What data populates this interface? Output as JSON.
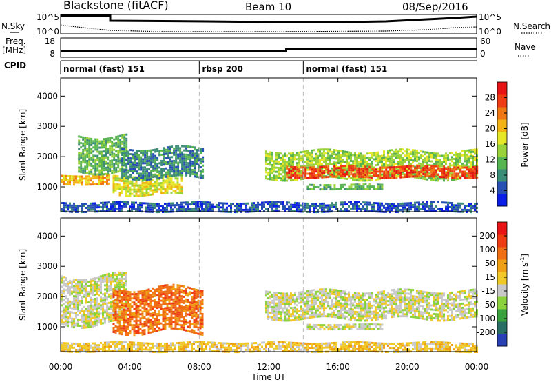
{
  "header": {
    "title": "Blackstone (fitACF)",
    "beam": "Beam 10",
    "date": "08/Sep/2016"
  },
  "side_labels": {
    "nsky": "N.Sky",
    "nsearch": "N.Search",
    "freq": "Freq.",
    "freq_unit": "[MHz]",
    "nave": "Nave",
    "cpid": "CPID"
  },
  "top_panels": {
    "noise_ticks_left": [
      "10^5",
      "10^0"
    ],
    "noise_ticks_right": [
      "10^5",
      "10^0"
    ],
    "freq_ticks_left": [
      "18",
      "8"
    ],
    "nave_ticks_right": [
      "60",
      "0"
    ]
  },
  "cpid_segments": [
    {
      "label": "normal (fast) 151",
      "start_hour": 0
    },
    {
      "label": "rbsp 200",
      "start_hour": 8
    },
    {
      "label": "normal (fast) 151",
      "start_hour": 14
    }
  ],
  "chart_data": [
    {
      "type": "heatmap",
      "name": "power",
      "ylabel": "Slant Range [km]",
      "y_ticks": [
        "4000",
        "3000",
        "2000",
        "1000"
      ],
      "y_tick_values": [
        4000,
        3000,
        2000,
        1000
      ],
      "ylim": [
        180,
        4600
      ],
      "xlim": [
        0,
        24
      ],
      "colorbar_label": "Power [dB]",
      "colorbar_ticks": [
        "28",
        "24",
        "20",
        "16",
        "12",
        "8",
        "4"
      ],
      "colorbar_colors": [
        "#0a1ee6",
        "#2850b4",
        "#3c8c78",
        "#58b450",
        "#9ad23c",
        "#e6e628",
        "#f0b414",
        "#f07814",
        "#ee3c14",
        "#e61414"
      ],
      "bands": [
        {
          "x0": 0.0,
          "x1": 2.8,
          "y0": 1100,
          "y1": 1400,
          "level": 6
        },
        {
          "x0": 1.0,
          "x1": 3.8,
          "y0": 1500,
          "y1": 2700,
          "level": 3
        },
        {
          "x0": 3.0,
          "x1": 7.0,
          "y0": 750,
          "y1": 1400,
          "level": 5
        },
        {
          "x0": 3.5,
          "x1": 8.2,
          "y0": 1300,
          "y1": 2300,
          "level": 2
        },
        {
          "x0": 11.8,
          "x1": 24.0,
          "y0": 1300,
          "y1": 2200,
          "level": 4
        },
        {
          "x0": 13.0,
          "x1": 24.0,
          "y0": 1350,
          "y1": 1700,
          "level": 8
        },
        {
          "x0": 14.2,
          "x1": 18.5,
          "y0": 950,
          "y1": 1100,
          "level": 3
        },
        {
          "x0": 0.0,
          "x1": 24.0,
          "y0": 180,
          "y1": 500,
          "level": 1
        }
      ]
    },
    {
      "type": "heatmap",
      "name": "velocity",
      "ylabel": "Slant Range [km]",
      "y_ticks": [
        "4000",
        "3000",
        "2000",
        "1000"
      ],
      "y_tick_values": [
        4000,
        3000,
        2000,
        1000
      ],
      "ylim": [
        180,
        4600
      ],
      "xlim": [
        0,
        24
      ],
      "xlabel": "Time UT",
      "x_ticks": [
        "00:00",
        "04:00",
        "08:00",
        "12:00",
        "16:00",
        "20:00",
        "00:00"
      ],
      "x_tick_values": [
        0,
        4,
        8,
        12,
        16,
        20,
        24
      ],
      "colorbar_label": "Velocity [m s",
      "colorbar_label_sup": "-1",
      "colorbar_label_end": "]",
      "colorbar_ticks": [
        "200",
        "100",
        "50",
        "15",
        "-15",
        "-50",
        "-100",
        "-200"
      ],
      "colorbar_colors": [
        "#2840b4",
        "#286e64",
        "#3ca03c",
        "#8cd23c",
        "#c8c8c8",
        "#f0c828",
        "#f0a014",
        "#f06e14",
        "#ee3c14",
        "#e61414"
      ],
      "bands": [
        {
          "x0": 0.0,
          "x1": 3.8,
          "y0": 1100,
          "y1": 2700,
          "level": 4
        },
        {
          "x0": 3.0,
          "x1": 8.2,
          "y0": 800,
          "y1": 2300,
          "level": 7
        },
        {
          "x0": 11.8,
          "x1": 24.0,
          "y0": 1300,
          "y1": 2200,
          "level": 4
        },
        {
          "x0": 14.2,
          "x1": 18.5,
          "y0": 950,
          "y1": 1100,
          "level": 4
        },
        {
          "x0": 0.0,
          "x1": 24.0,
          "y0": 180,
          "y1": 500,
          "level": 5
        }
      ]
    }
  ]
}
